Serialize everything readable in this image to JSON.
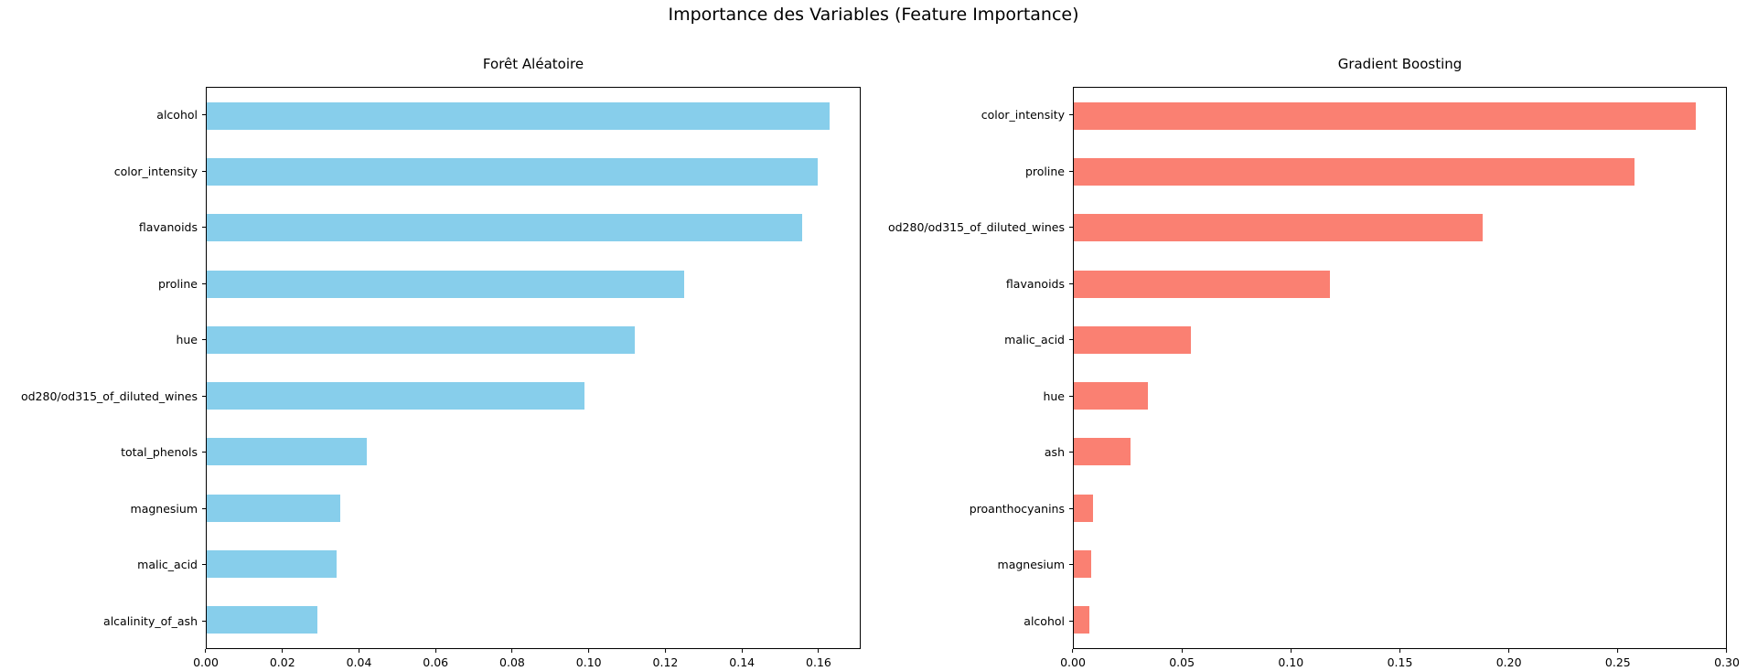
{
  "figure": {
    "title": "Importance des Variables (Feature Importance)"
  },
  "chart_data": [
    {
      "type": "bar",
      "orientation": "horizontal",
      "title": "Forêt Aléatoire",
      "bar_color": "#87CEEB",
      "categories": [
        "alcohol",
        "color_intensity",
        "flavanoids",
        "proline",
        "hue",
        "od280/od315_of_diluted_wines",
        "total_phenols",
        "magnesium",
        "malic_acid",
        "alcalinity_of_ash"
      ],
      "values": [
        0.163,
        0.16,
        0.156,
        0.125,
        0.112,
        0.099,
        0.042,
        0.035,
        0.034,
        0.029
      ],
      "xlabel": "",
      "ylabel": "",
      "xlim": [
        0,
        0.171
      ],
      "xticks": [
        0,
        0.02,
        0.04,
        0.06,
        0.08,
        0.1,
        0.12,
        0.14,
        0.16
      ],
      "grid": false,
      "legend": false
    },
    {
      "type": "bar",
      "orientation": "horizontal",
      "title": "Gradient Boosting",
      "bar_color": "#FA8072",
      "categories": [
        "color_intensity",
        "proline",
        "od280/od315_of_diluted_wines",
        "flavanoids",
        "malic_acid",
        "hue",
        "ash",
        "proanthocyanins",
        "magnesium",
        "alcohol"
      ],
      "values": [
        0.286,
        0.258,
        0.188,
        0.118,
        0.054,
        0.034,
        0.026,
        0.009,
        0.008,
        0.007
      ],
      "xlabel": "",
      "ylabel": "",
      "xlim": [
        0,
        0.3
      ],
      "xticks": [
        0,
        0.05,
        0.1,
        0.15,
        0.2,
        0.25,
        0.3
      ],
      "grid": false,
      "legend": false
    }
  ]
}
